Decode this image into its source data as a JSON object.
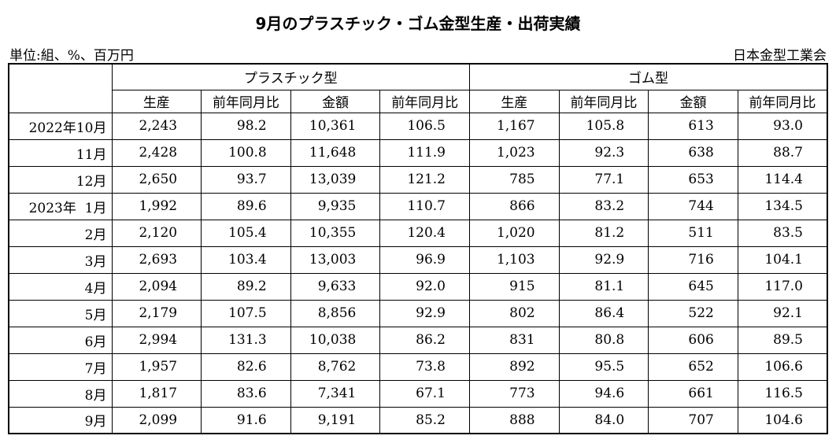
{
  "title": "9月のプラスチック・ゴム金型生産・出荷実績",
  "unit": "単位:組、%、百万円",
  "source": "日本金型工業会",
  "table": {
    "groups": [
      "プラスチック型",
      "ゴム型"
    ],
    "columns": [
      "生産",
      "前年同月比",
      "金額",
      "前年同月比",
      "生産",
      "前年同月比",
      "金額",
      "前年同月比"
    ],
    "rows": [
      {
        "label": "2022年10月",
        "cells": [
          "2,243",
          "98.2",
          "10,361",
          "106.5",
          "1,167",
          "105.8",
          "613",
          "93.0"
        ]
      },
      {
        "label": "11月",
        "cells": [
          "2,428",
          "100.8",
          "11,648",
          "111.9",
          "1,023",
          "92.3",
          "638",
          "88.7"
        ]
      },
      {
        "label": "12月",
        "cells": [
          "2,650",
          "93.7",
          "13,039",
          "121.2",
          "785",
          "77.1",
          "653",
          "114.4"
        ]
      },
      {
        "label": "2023年  1月",
        "cells": [
          "1,992",
          "89.6",
          "9,935",
          "110.7",
          "866",
          "83.2",
          "744",
          "134.5"
        ]
      },
      {
        "label": "2月",
        "cells": [
          "2,120",
          "105.4",
          "10,355",
          "120.4",
          "1,020",
          "81.2",
          "511",
          "83.5"
        ]
      },
      {
        "label": "3月",
        "cells": [
          "2,693",
          "103.4",
          "13,003",
          "96.9",
          "1,103",
          "92.9",
          "716",
          "104.1"
        ]
      },
      {
        "label": "4月",
        "cells": [
          "2,094",
          "89.2",
          "9,633",
          "92.0",
          "915",
          "81.1",
          "645",
          "117.0"
        ]
      },
      {
        "label": "5月",
        "cells": [
          "2,179",
          "107.5",
          "8,856",
          "92.9",
          "802",
          "86.4",
          "522",
          "92.1"
        ]
      },
      {
        "label": "6月",
        "cells": [
          "2,994",
          "131.3",
          "10,038",
          "86.2",
          "831",
          "80.8",
          "606",
          "89.5"
        ]
      },
      {
        "label": "7月",
        "cells": [
          "1,957",
          "82.6",
          "8,762",
          "73.8",
          "892",
          "95.5",
          "652",
          "106.6"
        ]
      },
      {
        "label": "8月",
        "cells": [
          "1,817",
          "83.6",
          "7,341",
          "67.1",
          "773",
          "94.6",
          "661",
          "116.5"
        ]
      },
      {
        "label": "9月",
        "cells": [
          "2,099",
          "91.6",
          "9,191",
          "85.2",
          "888",
          "84.0",
          "707",
          "104.6"
        ]
      }
    ]
  }
}
